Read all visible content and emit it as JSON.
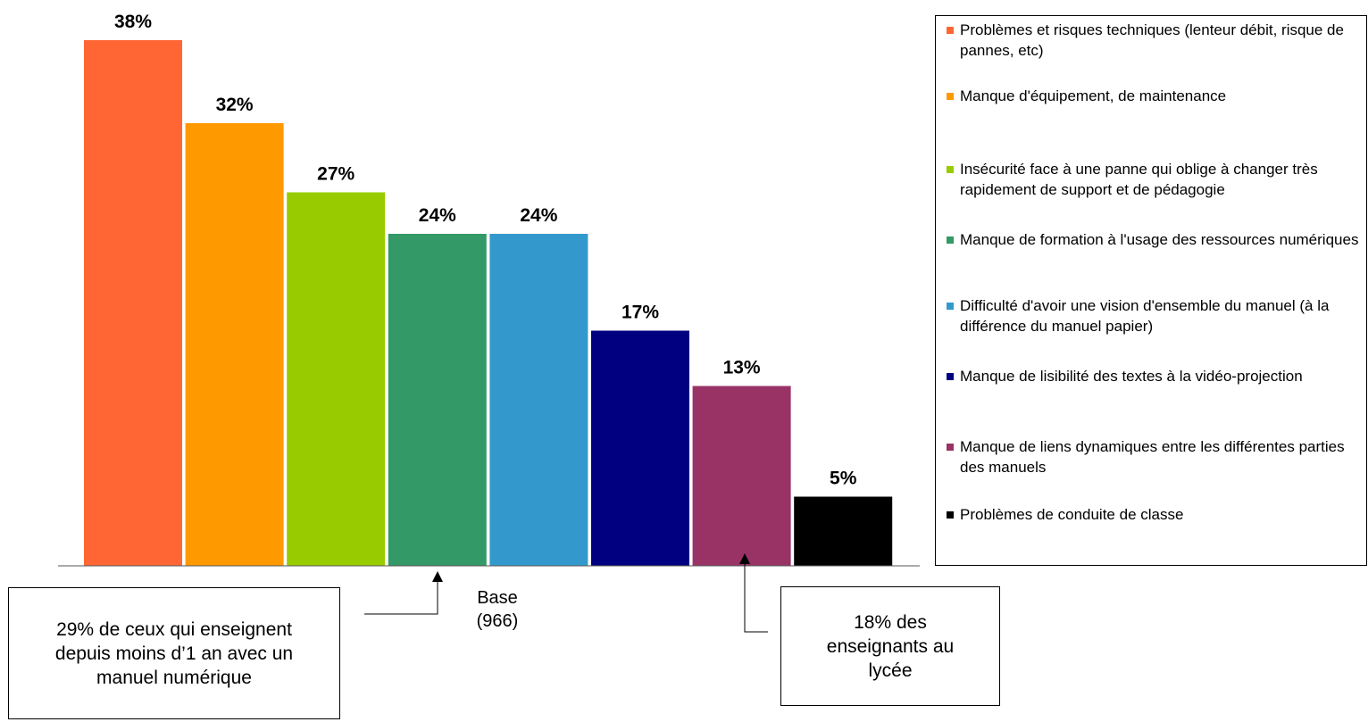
{
  "chart_data": {
    "type": "bar",
    "categories": [
      "Problèmes et risques techniques (lenteur débit, risque de pannes, etc)",
      "Manque d'équipement, de maintenance",
      "Insécurité face à une panne qui oblige à changer très rapidement de support et de pédagogie",
      "Manque de formation à l'usage des ressources numériques",
      "Difficulté d'avoir une vision d'ensemble du manuel (à la différence du manuel papier)",
      "Manque de lisibilité des textes à la vidéo-projection",
      "Manque de liens dynamiques entre les différentes parties des manuels",
      "Problèmes de conduite de classe"
    ],
    "values": [
      38,
      32,
      27,
      24,
      24,
      17,
      13,
      5
    ],
    "value_labels": [
      "38%",
      "32%",
      "27%",
      "24%",
      "24%",
      "17%",
      "13%",
      "5%"
    ],
    "colors": [
      "#ff6633",
      "#ff9900",
      "#99cc00",
      "#339966",
      "#3399cc",
      "#000080",
      "#993366",
      "#000000"
    ],
    "ylim": [
      0,
      38
    ],
    "grid": false,
    "legend_position": "right",
    "legend": [
      "Problèmes et risques techniques (lenteur débit, risque de pannes, etc)",
      "Manque d'équipement, de maintenance",
      "Insécurité face à une panne qui oblige à changer très rapidement de support et de pédagogie",
      "Manque de formation à l'usage des ressources numériques",
      "Difficulté d'avoir une vision d'ensemble du manuel (à la différence du manuel papier)",
      "Manque de lisibilité des textes à la vidéo-projection",
      "Manque de liens dynamiques entre les différentes parties des manuels",
      "Problèmes de conduite de classe"
    ],
    "annotations": {
      "base_label": "Base (966)",
      "callout_left": "29% de ceux qui enseignent depuis moins d’1 an avec un manuel numérique",
      "callout_right": "18% des enseignants au lycée"
    }
  }
}
